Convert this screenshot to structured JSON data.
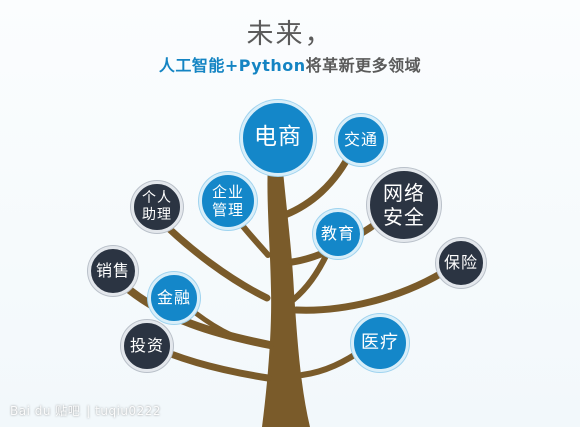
{
  "header": {
    "title": "未来，",
    "subtitle_highlight": "人工智能+Python",
    "subtitle_rest": "将革新更多领域"
  },
  "nodes": {
    "ecommerce": "电商",
    "transport": "交通",
    "enterprise": [
      "企业",
      "管理"
    ],
    "assistant": [
      "个人",
      "助理"
    ],
    "network_security": [
      "网络",
      "安全"
    ],
    "education": "教育",
    "sales": "销售",
    "insurance": "保险",
    "finance": "金融",
    "investment": "投资",
    "medical": "医疗"
  },
  "watermark": {
    "brand": "Bai du 贴吧",
    "user": "| tuqiu0222"
  },
  "colors": {
    "node_blue": "#1487c9",
    "node_dark": "#2b3442",
    "trunk": "#7a5b2a",
    "title_blue": "#1484c3"
  }
}
